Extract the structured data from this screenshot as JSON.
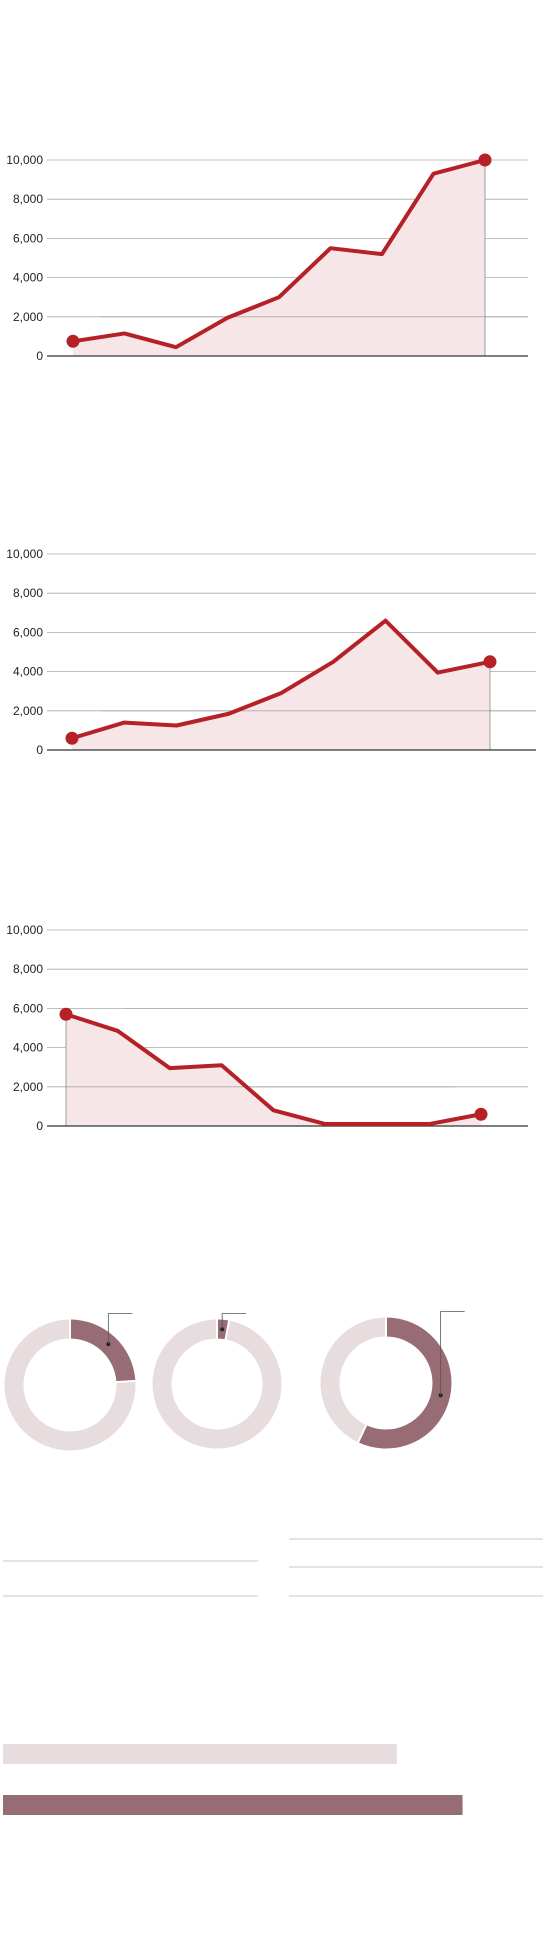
{
  "colors": {
    "series": "#b52127",
    "area": "#f6e6e7",
    "donut_track": "#e7dcde",
    "donut_value": "#986c74",
    "bar_light": "#e7dcde",
    "bar_dark": "#986c74"
  },
  "chart_data": [
    {
      "type": "area",
      "x": [
        1,
        2,
        3,
        4,
        5,
        6,
        7,
        8,
        9
      ],
      "values": [
        750,
        1150,
        450,
        1950,
        3000,
        5500,
        5200,
        9300,
        10000
      ],
      "ylim": [
        0,
        10000
      ],
      "yticks": [
        "10,000",
        "8,000",
        "6,000",
        "4,000",
        "2,000",
        "0"
      ],
      "grid": true
    },
    {
      "type": "area",
      "x": [
        1,
        2,
        3,
        4,
        5,
        6,
        7,
        8,
        9
      ],
      "values": [
        600,
        1400,
        1250,
        1850,
        2900,
        4500,
        6600,
        3950,
        4500
      ],
      "ylim": [
        0,
        10000
      ],
      "yticks": [
        "10,000",
        "8,000",
        "6,000",
        "4,000",
        "2,000",
        "0"
      ],
      "grid": true
    },
    {
      "type": "area",
      "x": [
        1,
        2,
        3,
        4,
        5,
        6,
        7,
        8,
        9
      ],
      "values": [
        5700,
        4850,
        2950,
        3100,
        800,
        100,
        100,
        100,
        600
      ],
      "ylim": [
        0,
        10000
      ],
      "yticks": [
        "10,000",
        "8,000",
        "6,000",
        "4,000",
        "2,000",
        "0"
      ],
      "grid": true
    },
    {
      "type": "pie",
      "values": [
        0.24,
        0.03,
        0.57
      ],
      "grid": false
    },
    {
      "type": "bar",
      "values": [
        0.78,
        0.91
      ],
      "grid": false
    }
  ]
}
